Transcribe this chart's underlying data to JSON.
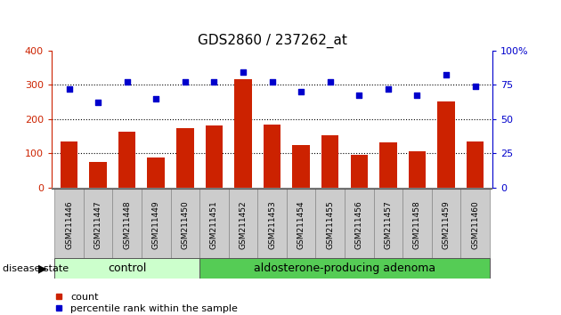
{
  "title": "GDS2860 / 237262_at",
  "samples": [
    "GSM211446",
    "GSM211447",
    "GSM211448",
    "GSM211449",
    "GSM211450",
    "GSM211451",
    "GSM211452",
    "GSM211453",
    "GSM211454",
    "GSM211455",
    "GSM211456",
    "GSM211457",
    "GSM211458",
    "GSM211459",
    "GSM211460"
  ],
  "counts": [
    135,
    75,
    163,
    88,
    172,
    180,
    315,
    183,
    125,
    152,
    96,
    132,
    106,
    250,
    135
  ],
  "percentiles": [
    72,
    62,
    77,
    65,
    77,
    77,
    84,
    77,
    70,
    77,
    67,
    72,
    67,
    82,
    74
  ],
  "bar_color": "#cc2200",
  "dot_color": "#0000cc",
  "ylim_left": [
    0,
    400
  ],
  "ylim_right": [
    0,
    100
  ],
  "yticks_left": [
    0,
    100,
    200,
    300,
    400
  ],
  "yticks_right": [
    0,
    25,
    50,
    75,
    100
  ],
  "ytick_labels_right": [
    "0",
    "25",
    "50",
    "75",
    "100%"
  ],
  "grid_values": [
    100,
    200,
    300
  ],
  "control_count": 5,
  "control_label": "control",
  "adenoma_label": "aldosterone-producing adenoma",
  "disease_state_label": "disease state",
  "control_bg": "#ccffcc",
  "adenoma_bg": "#55cc55",
  "legend_count_label": "count",
  "legend_percentile_label": "percentile rank within the sample",
  "tick_bg_color": "#cccccc",
  "plot_bg_color": "#ffffff",
  "left_axis_color": "#cc2200",
  "right_axis_color": "#0000cc"
}
